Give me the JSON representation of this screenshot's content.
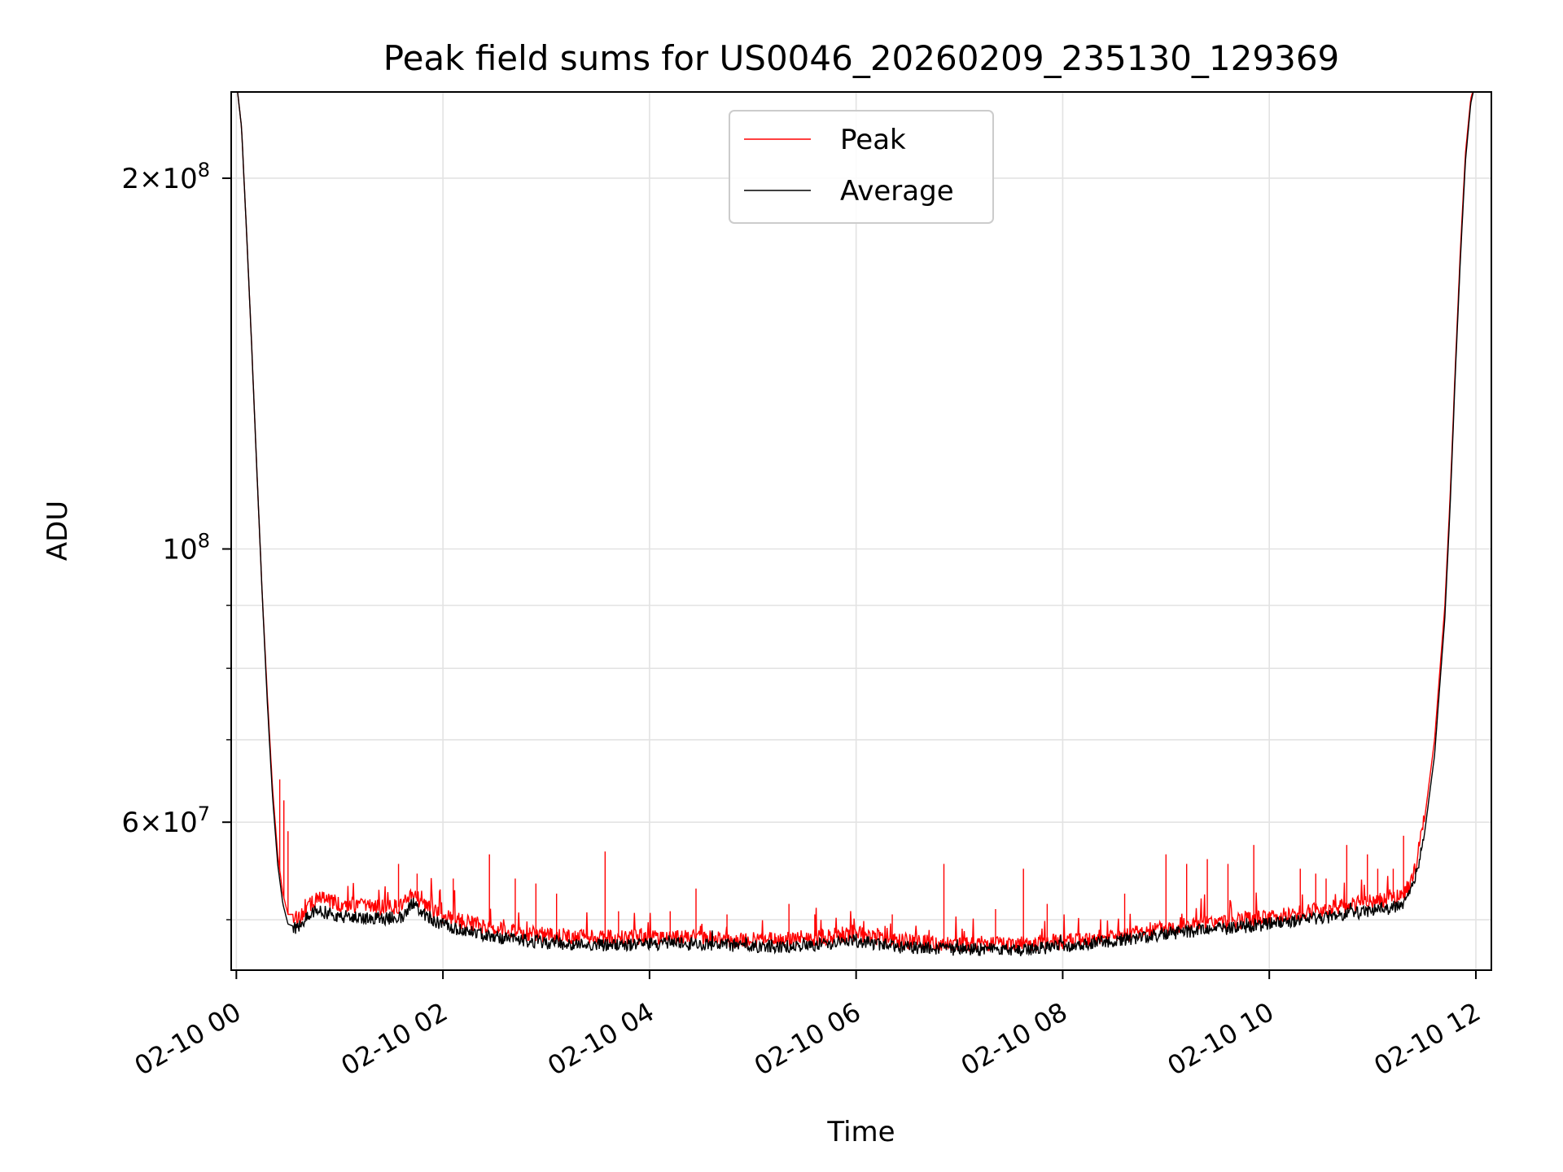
{
  "chart_data": {
    "type": "line",
    "title": "Peak field sums for US0046_20260209_235130_129369",
    "xlabel": "Time",
    "ylabel": "ADU",
    "yscale": "log",
    "x_unit": "hours since 02-10 00:00",
    "xlim": [
      -0.05,
      12.15
    ],
    "ylim": [
      45500000,
      235000000
    ],
    "grid": true,
    "legend_location": "upper center",
    "x_ticks": [
      {
        "value": 0,
        "label": "02-10 00"
      },
      {
        "value": 2,
        "label": "02-10 02"
      },
      {
        "value": 4,
        "label": "02-10 04"
      },
      {
        "value": 6,
        "label": "02-10 06"
      },
      {
        "value": 8,
        "label": "02-10 08"
      },
      {
        "value": 10,
        "label": "02-10 10"
      },
      {
        "value": 12,
        "label": "02-10 12"
      }
    ],
    "y_major_ticks": [
      {
        "value": 100000000,
        "base": "10",
        "exp": "8"
      },
      {
        "value": 200000000,
        "base": "2×10",
        "exp": "8"
      },
      {
        "value": 60000000,
        "base": "6×10",
        "exp": "7"
      }
    ],
    "y_minor_ticks": [
      50000000,
      70000000,
      80000000,
      90000000
    ],
    "series": [
      {
        "name": "Peak",
        "color": "#ff0000",
        "x": [
          0.0,
          0.05,
          0.1,
          0.15,
          0.2,
          0.25,
          0.3,
          0.35,
          0.4,
          0.45,
          0.5,
          0.55,
          0.6,
          0.65,
          0.7,
          0.8,
          0.9,
          1.0,
          1.2,
          1.4,
          1.6,
          1.7,
          1.8,
          2.0,
          2.3,
          2.6,
          3.0,
          3.3,
          3.6,
          4.0,
          4.3,
          4.6,
          5.0,
          5.3,
          5.6,
          6.0,
          6.2,
          6.4,
          6.7,
          7.0,
          7.3,
          7.7,
          8.0,
          8.3,
          8.6,
          9.0,
          9.3,
          9.6,
          10.0,
          10.3,
          10.6,
          10.9,
          11.1,
          11.3,
          11.4,
          11.5,
          11.6,
          11.7,
          11.75,
          11.8,
          11.85,
          11.9,
          11.95,
          12.0
        ],
        "y": [
          240000000,
          220000000,
          180000000,
          145000000,
          115000000,
          92000000,
          76000000,
          64000000,
          56500000,
          52500000,
          50500000,
          50500000,
          50000000,
          50500000,
          51500000,
          52000000,
          51800000,
          51500000,
          51300000,
          51200000,
          51200000,
          52600000,
          51600000,
          50300000,
          49600000,
          49000000,
          48600000,
          48400000,
          48400000,
          48400000,
          48400000,
          48300000,
          48200000,
          48200000,
          48300000,
          48700000,
          48400000,
          48000000,
          47900000,
          47800000,
          47800000,
          47800000,
          48100000,
          48300000,
          48700000,
          49300000,
          49600000,
          49800000,
          50200000,
          50600000,
          51100000,
          51600000,
          51900000,
          52200000,
          54500000,
          60000000,
          70000000,
          90000000,
          110000000,
          140000000,
          175000000,
          210000000,
          232000000,
          240000000
        ]
      },
      {
        "name": "Average",
        "color": "#000000",
        "x": [
          0.0,
          0.05,
          0.1,
          0.15,
          0.2,
          0.25,
          0.3,
          0.35,
          0.4,
          0.45,
          0.5,
          0.55,
          0.6,
          0.65,
          0.7,
          0.8,
          0.9,
          1.0,
          1.2,
          1.4,
          1.6,
          1.7,
          1.8,
          2.0,
          2.3,
          2.6,
          3.0,
          3.3,
          3.6,
          4.0,
          4.3,
          4.6,
          5.0,
          5.3,
          5.6,
          6.0,
          6.2,
          6.4,
          6.7,
          7.0,
          7.3,
          7.7,
          8.0,
          8.3,
          8.6,
          9.0,
          9.3,
          9.6,
          10.0,
          10.3,
          10.6,
          10.9,
          11.1,
          11.3,
          11.4,
          11.5,
          11.6,
          11.7,
          11.75,
          11.8,
          11.85,
          11.9,
          11.95,
          12.0
        ],
        "y": [
          240000000,
          220000000,
          180000000,
          145000000,
          115000000,
          92000000,
          75000000,
          63000000,
          55500000,
          51500000,
          49600000,
          49400000,
          49200000,
          49800000,
          50600000,
          50800000,
          50600000,
          50300000,
          50200000,
          50100000,
          50200000,
          51600000,
          50600000,
          49500000,
          48800000,
          48300000,
          47900000,
          47700000,
          47700000,
          47800000,
          47800000,
          47700000,
          47600000,
          47600000,
          47700000,
          48100000,
          47800000,
          47500000,
          47400000,
          47300000,
          47300000,
          47300000,
          47600000,
          47800000,
          48200000,
          48700000,
          49000000,
          49200000,
          49600000,
          49900000,
          50300000,
          50700000,
          51000000,
          51300000,
          53500000,
          58500000,
          68000000,
          88000000,
          108000000,
          138000000,
          172000000,
          207000000,
          230000000,
          240000000
        ]
      }
    ],
    "peak_spikes": [
      {
        "x": 0.42,
        "y": 65000000
      },
      {
        "x": 0.46,
        "y": 62500000
      },
      {
        "x": 0.5,
        "y": 59000000
      },
      {
        "x": 1.57,
        "y": 55500000
      },
      {
        "x": 1.75,
        "y": 54500000
      },
      {
        "x": 2.1,
        "y": 54000000
      },
      {
        "x": 2.45,
        "y": 56500000
      },
      {
        "x": 2.7,
        "y": 54000000
      },
      {
        "x": 2.9,
        "y": 53500000
      },
      {
        "x": 3.1,
        "y": 52500000
      },
      {
        "x": 3.57,
        "y": 56800000
      },
      {
        "x": 3.7,
        "y": 50800000
      },
      {
        "x": 4.2,
        "y": 50800000
      },
      {
        "x": 4.45,
        "y": 53000000
      },
      {
        "x": 4.75,
        "y": 50500000
      },
      {
        "x": 5.35,
        "y": 51500000
      },
      {
        "x": 5.6,
        "y": 50500000
      },
      {
        "x": 6.35,
        "y": 50500000
      },
      {
        "x": 6.85,
        "y": 55500000
      },
      {
        "x": 7.35,
        "y": 51000000
      },
      {
        "x": 7.62,
        "y": 55000000
      },
      {
        "x": 7.85,
        "y": 51500000
      },
      {
        "x": 8.6,
        "y": 52500000
      },
      {
        "x": 9.0,
        "y": 56500000
      },
      {
        "x": 9.2,
        "y": 55500000
      },
      {
        "x": 9.4,
        "y": 56000000
      },
      {
        "x": 9.6,
        "y": 55500000
      },
      {
        "x": 9.85,
        "y": 57500000
      },
      {
        "x": 10.3,
        "y": 55000000
      },
      {
        "x": 10.45,
        "y": 54500000
      },
      {
        "x": 10.55,
        "y": 54000000
      },
      {
        "x": 10.75,
        "y": 57500000
      },
      {
        "x": 10.95,
        "y": 56500000
      },
      {
        "x": 11.05,
        "y": 55000000
      },
      {
        "x": 11.2,
        "y": 55000000
      },
      {
        "x": 11.3,
        "y": 58500000
      }
    ]
  }
}
